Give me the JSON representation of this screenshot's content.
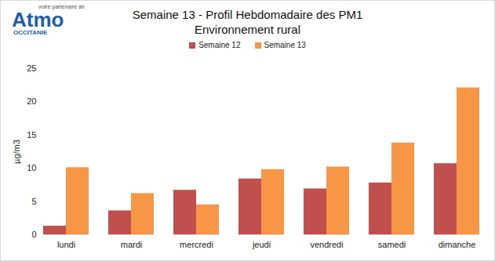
{
  "chart_data": {
    "type": "bar",
    "title": "Semaine 13 - Profil Hebdomadaire des PM1",
    "subtitle": "Environnement rural",
    "logo": {
      "tagline": "votre partenaire air",
      "name": "Atmo",
      "region": "OCCITANIE"
    },
    "y_label": "µg/m3",
    "categories": [
      "lundi",
      "mardi",
      "mercredi",
      "jeudi",
      "vendredi",
      "samedi",
      "dimanche"
    ],
    "series": [
      {
        "name": "Semaine 12",
        "color": "#c0504d",
        "values": [
          1.3,
          3.6,
          6.7,
          8.4,
          6.9,
          7.8,
          10.7
        ]
      },
      {
        "name": "Semaine 13",
        "color": "#f79646",
        "values": [
          10.1,
          6.2,
          4.5,
          9.8,
          10.2,
          13.8,
          22.1
        ]
      }
    ],
    "ylim": [
      0,
      25
    ],
    "yticks": [
      0,
      5,
      10,
      15,
      20,
      25
    ],
    "grid": false,
    "legend": "top"
  }
}
